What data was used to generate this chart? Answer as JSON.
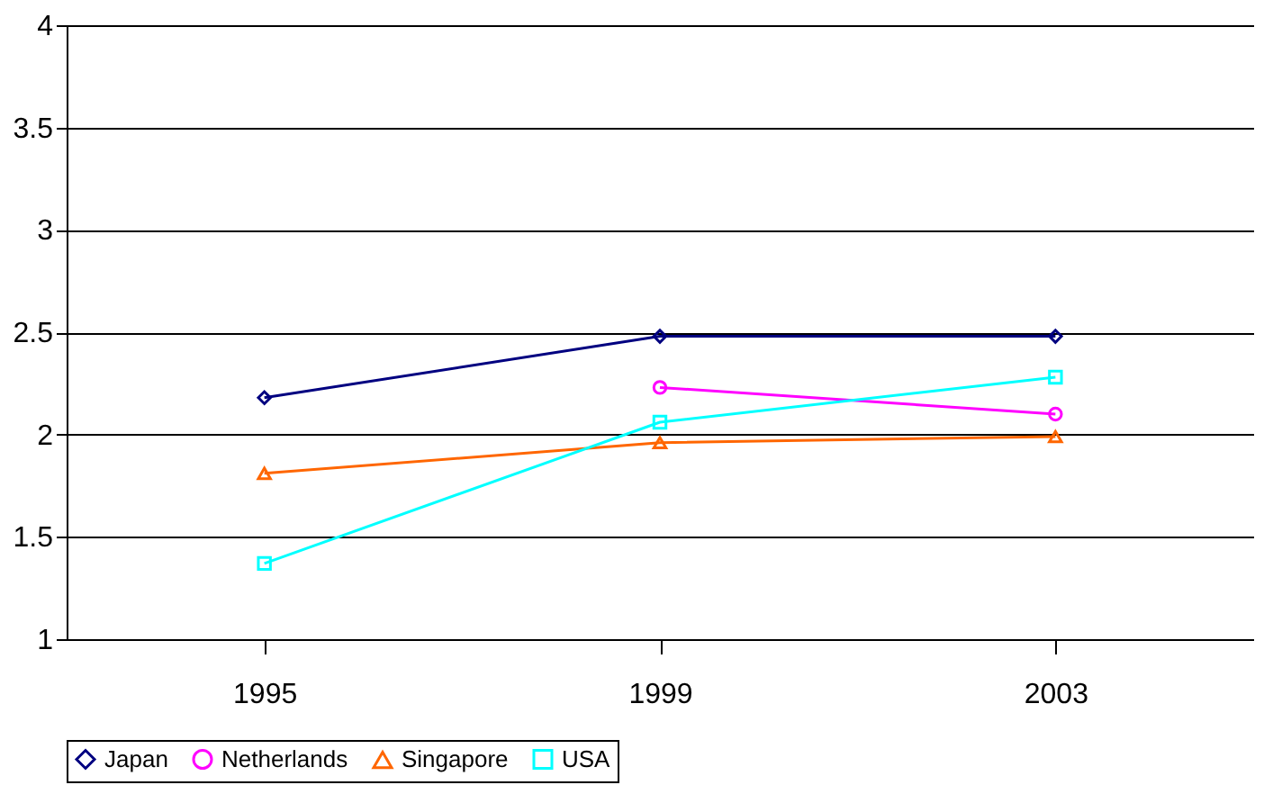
{
  "chart_data": {
    "type": "line",
    "categories": [
      "1995",
      "1999",
      "2003"
    ],
    "series": [
      {
        "name": "Japan",
        "color": "#000080",
        "marker": "diamond",
        "values": [
          2.18,
          2.48,
          2.48
        ]
      },
      {
        "name": "Netherlands",
        "color": "#ff00ff",
        "marker": "circle",
        "values": [
          null,
          2.23,
          2.1
        ]
      },
      {
        "name": "Singapore",
        "color": "#ff6600",
        "marker": "triangle",
        "values": [
          1.81,
          1.96,
          1.99
        ]
      },
      {
        "name": "USA",
        "color": "#00ffff",
        "marker": "square",
        "values": [
          1.37,
          2.06,
          2.28
        ]
      }
    ],
    "ylim": [
      1,
      4
    ],
    "yticks": [
      1,
      1.5,
      2,
      2.5,
      3,
      3.5,
      4
    ],
    "grid": "y",
    "legend": "bottom",
    "line_style": "solid"
  }
}
